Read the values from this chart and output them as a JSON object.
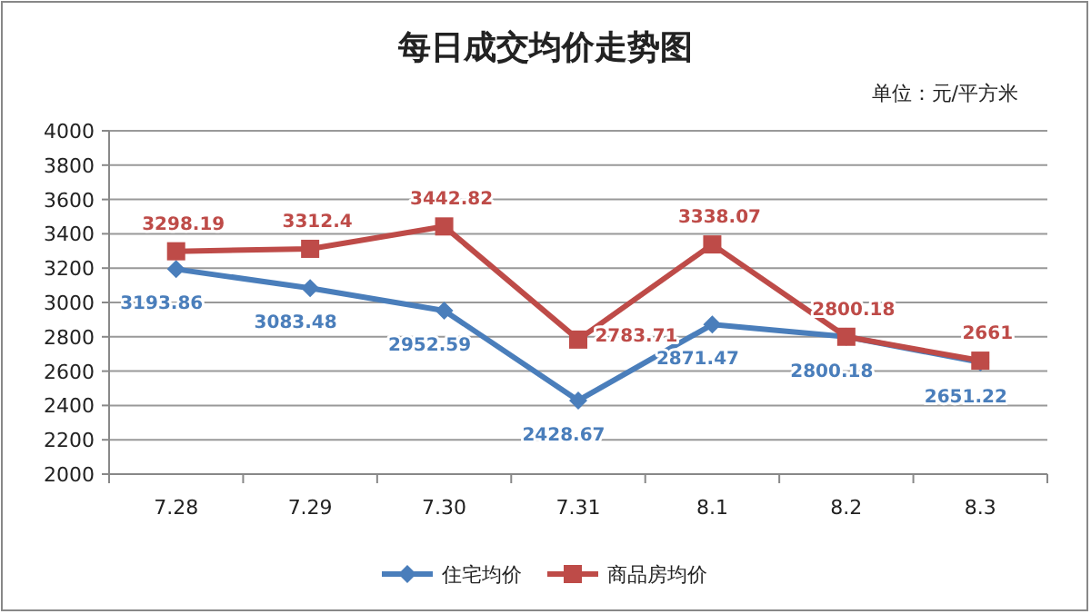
{
  "chart_data": {
    "type": "line",
    "title": "每日成交均价走势图",
    "annotations": [
      "单位：元/平方米"
    ],
    "categories": [
      "7.28",
      "7.29",
      "7.30",
      "7.31",
      "8.1",
      "8.2",
      "8.3"
    ],
    "series": [
      {
        "name": "住宅均价",
        "color": "#4a7ebb",
        "marker": "diamond",
        "values": [
          3193.86,
          3083.48,
          2952.59,
          2428.67,
          2871.47,
          2800.18,
          2651.22
        ]
      },
      {
        "name": "商品房均价",
        "color": "#be4b48",
        "marker": "square",
        "values": [
          3298.19,
          3312.4,
          3442.82,
          2783.71,
          3338.07,
          2800.18,
          2661
        ]
      }
    ],
    "ylim": [
      2000,
      4000
    ],
    "yticks": [
      2000,
      2200,
      2400,
      2600,
      2800,
      3000,
      3200,
      3400,
      3600,
      3800,
      4000
    ],
    "grid": "y",
    "legend": "bottom",
    "data_labels": true
  }
}
